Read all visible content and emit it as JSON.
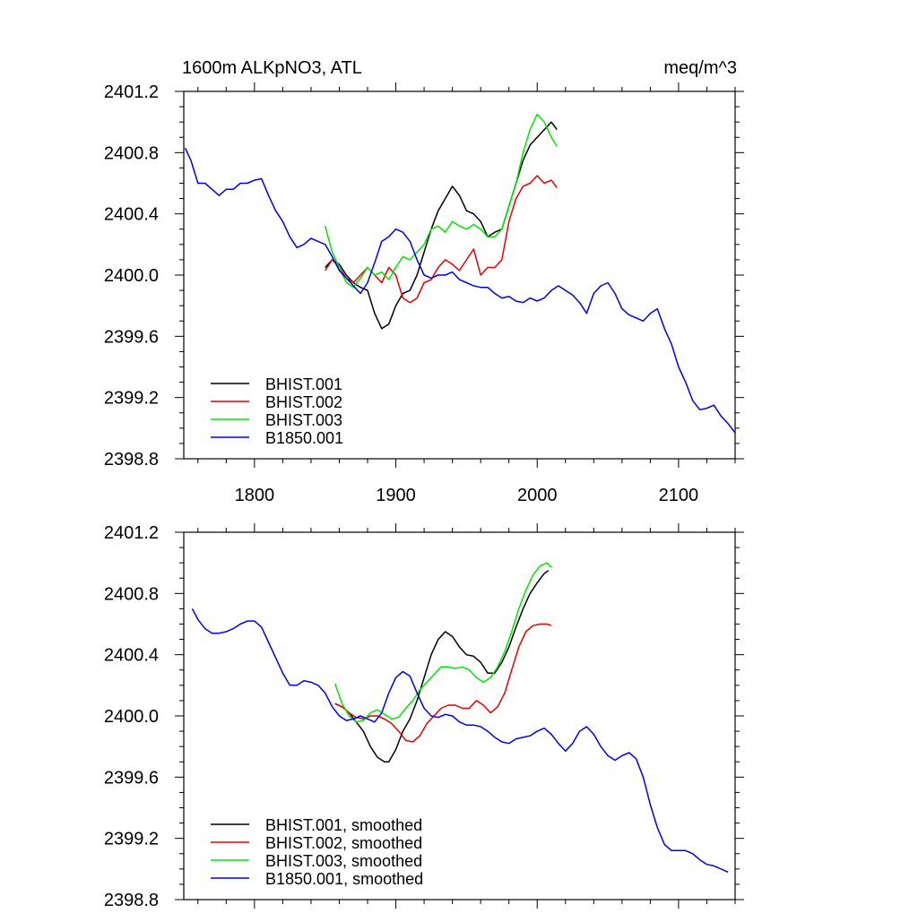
{
  "title_left": "1600m ALKpNO3, ATL",
  "title_right": "meq/m^3",
  "colors": {
    "BHIST.001": "#000000",
    "BHIST.002": "#e60000",
    "BHIST.003": "#00e600",
    "B1850.001": "#0000e6"
  },
  "chart_data": [
    {
      "type": "line",
      "title": "1600m ALKpNO3, ATL",
      "unit": "meq/m^3",
      "xlim": [
        1750,
        2140
      ],
      "ylim": [
        2398.8,
        2401.2
      ],
      "xticks": [
        "1800",
        "1900",
        "2000",
        "2100"
      ],
      "yticks": [
        "2398.8",
        "2399.2",
        "2399.6",
        "2400.0",
        "2400.4",
        "2400.8",
        "2401.2"
      ],
      "grid": false,
      "legend": "bottom-left",
      "series": [
        {
          "name": "BHIST.001",
          "color": "#000000",
          "x": [
            1850,
            1855,
            1860,
            1865,
            1870,
            1875,
            1880,
            1885,
            1890,
            1895,
            1900,
            1905,
            1910,
            1915,
            1920,
            1925,
            1930,
            1935,
            1940,
            1945,
            1950,
            1955,
            1960,
            1965,
            1970,
            1975,
            1980,
            1985,
            1990,
            1995,
            2000,
            2005,
            2010,
            2014
          ],
          "y": [
            2400.05,
            2400.1,
            2400.07,
            2400.0,
            2399.95,
            2399.92,
            2399.9,
            2399.75,
            2399.65,
            2399.68,
            2399.8,
            2399.88,
            2399.9,
            2400.0,
            2400.15,
            2400.3,
            2400.42,
            2400.5,
            2400.58,
            2400.52,
            2400.42,
            2400.4,
            2400.35,
            2400.25,
            2400.28,
            2400.3,
            2400.45,
            2400.6,
            2400.75,
            2400.85,
            2400.9,
            2400.95,
            2401.0,
            2400.95
          ]
        },
        {
          "name": "BHIST.002",
          "color": "#e60000",
          "x": [
            1850,
            1855,
            1860,
            1865,
            1870,
            1875,
            1880,
            1885,
            1890,
            1895,
            1900,
            1905,
            1910,
            1915,
            1920,
            1925,
            1930,
            1935,
            1940,
            1945,
            1950,
            1955,
            1960,
            1965,
            1970,
            1975,
            1980,
            1985,
            1990,
            1995,
            2000,
            2005,
            2010,
            2014
          ],
          "y": [
            2400.03,
            2400.1,
            2400.05,
            2399.98,
            2399.95,
            2400.0,
            2400.05,
            2400.0,
            2399.95,
            2400.05,
            2400.0,
            2399.85,
            2399.82,
            2399.85,
            2399.95,
            2399.97,
            2400.05,
            2400.1,
            2400.07,
            2400.03,
            2400.1,
            2400.17,
            2400.0,
            2400.05,
            2400.05,
            2400.1,
            2400.35,
            2400.5,
            2400.58,
            2400.6,
            2400.65,
            2400.6,
            2400.62,
            2400.57
          ]
        },
        {
          "name": "BHIST.003",
          "color": "#00e600",
          "x": [
            1850,
            1855,
            1860,
            1865,
            1870,
            1875,
            1880,
            1885,
            1890,
            1895,
            1900,
            1905,
            1910,
            1915,
            1920,
            1925,
            1930,
            1935,
            1940,
            1945,
            1950,
            1955,
            1960,
            1965,
            1970,
            1975,
            1980,
            1985,
            1990,
            1995,
            2000,
            2005,
            2010,
            2014
          ],
          "y": [
            2400.32,
            2400.15,
            2400.05,
            2399.95,
            2399.92,
            2399.98,
            2400.05,
            2400.0,
            2400.02,
            2399.97,
            2400.05,
            2400.12,
            2400.1,
            2400.15,
            2400.2,
            2400.3,
            2400.32,
            2400.28,
            2400.35,
            2400.32,
            2400.3,
            2400.33,
            2400.3,
            2400.25,
            2400.25,
            2400.3,
            2400.45,
            2400.6,
            2400.8,
            2400.95,
            2401.05,
            2401.0,
            2400.9,
            2400.84
          ]
        },
        {
          "name": "B1850.001",
          "color": "#0000e6",
          "x": [
            1751,
            1755,
            1760,
            1765,
            1770,
            1775,
            1780,
            1785,
            1790,
            1795,
            1800,
            1805,
            1810,
            1815,
            1820,
            1825,
            1830,
            1835,
            1840,
            1845,
            1850,
            1855,
            1860,
            1865,
            1870,
            1875,
            1880,
            1885,
            1890,
            1895,
            1900,
            1905,
            1910,
            1915,
            1920,
            1925,
            1930,
            1935,
            1940,
            1945,
            1950,
            1955,
            1960,
            1965,
            1970,
            1975,
            1980,
            1985,
            1990,
            1995,
            2000,
            2005,
            2010,
            2015,
            2020,
            2025,
            2030,
            2035,
            2040,
            2045,
            2050,
            2055,
            2060,
            2065,
            2070,
            2075,
            2080,
            2085,
            2090,
            2095,
            2100,
            2105,
            2110,
            2115,
            2120,
            2125,
            2130,
            2135,
            2140
          ],
          "y": [
            2400.83,
            2400.75,
            2400.6,
            2400.6,
            2400.56,
            2400.52,
            2400.56,
            2400.56,
            2400.6,
            2400.6,
            2400.62,
            2400.63,
            2400.52,
            2400.42,
            2400.35,
            2400.25,
            2400.18,
            2400.2,
            2400.24,
            2400.22,
            2400.2,
            2400.12,
            2400.03,
            2399.98,
            2399.93,
            2399.88,
            2399.95,
            2400.08,
            2400.22,
            2400.25,
            2400.3,
            2400.28,
            2400.22,
            2400.1,
            2400.0,
            2399.98,
            2400.0,
            2400.0,
            2400.02,
            2399.97,
            2399.95,
            2399.93,
            2399.92,
            2399.92,
            2399.88,
            2399.85,
            2399.86,
            2399.83,
            2399.82,
            2399.85,
            2399.83,
            2399.85,
            2399.9,
            2399.93,
            2399.9,
            2399.87,
            2399.82,
            2399.75,
            2399.88,
            2399.93,
            2399.95,
            2399.88,
            2399.78,
            2399.74,
            2399.72,
            2399.7,
            2399.75,
            2399.78,
            2399.65,
            2399.55,
            2399.4,
            2399.3,
            2399.18,
            2399.12,
            2399.13,
            2399.15,
            2399.08,
            2399.03,
            2398.97
          ]
        }
      ]
    },
    {
      "type": "line",
      "xlim": [
        1750,
        2140
      ],
      "ylim": [
        2398.8,
        2401.2
      ],
      "xticks": [
        "",
        "",
        "",
        ""
      ],
      "yticks": [
        "2398.8",
        "2399.2",
        "2399.6",
        "2400.0",
        "2400.4",
        "2400.8",
        "2401.2"
      ],
      "grid": false,
      "legend": "bottom-left",
      "series": [
        {
          "name": "BHIST.001, smoothed",
          "color": "#000000",
          "x": [
            1857,
            1862,
            1867,
            1872,
            1877,
            1882,
            1887,
            1892,
            1895,
            1900,
            1905,
            1910,
            1915,
            1920,
            1925,
            1930,
            1935,
            1940,
            1945,
            1950,
            1955,
            1960,
            1965,
            1970,
            1975,
            1980,
            1985,
            1990,
            1995,
            2000,
            2005,
            2008
          ],
          "y": [
            2400.08,
            2400.06,
            2400.02,
            2399.96,
            2399.9,
            2399.8,
            2399.73,
            2399.7,
            2399.7,
            2399.78,
            2399.9,
            2399.98,
            2400.1,
            2400.25,
            2400.4,
            2400.5,
            2400.55,
            2400.52,
            2400.45,
            2400.4,
            2400.39,
            2400.35,
            2400.28,
            2400.28,
            2400.35,
            2400.45,
            2400.58,
            2400.7,
            2400.8,
            2400.87,
            2400.93,
            2400.95
          ]
        },
        {
          "name": "BHIST.002, smoothed",
          "color": "#e60000",
          "x": [
            1857,
            1862,
            1867,
            1872,
            1877,
            1882,
            1887,
            1892,
            1897,
            1902,
            1907,
            1912,
            1917,
            1922,
            1927,
            1932,
            1937,
            1942,
            1947,
            1952,
            1957,
            1962,
            1967,
            1972,
            1977,
            1982,
            1987,
            1992,
            1997,
            2002,
            2007,
            2010
          ],
          "y": [
            2400.08,
            2400.06,
            2400.02,
            2399.99,
            2399.98,
            2400.0,
            2400.0,
            2399.98,
            2399.95,
            2399.9,
            2399.84,
            2399.83,
            2399.87,
            2399.95,
            2400.0,
            2400.05,
            2400.07,
            2400.07,
            2400.05,
            2400.05,
            2400.1,
            2400.07,
            2400.02,
            2400.06,
            2400.15,
            2400.3,
            2400.45,
            2400.55,
            2400.59,
            2400.6,
            2400.6,
            2400.59
          ]
        },
        {
          "name": "BHIST.003, smoothed",
          "color": "#00e600",
          "x": [
            1857,
            1862,
            1867,
            1872,
            1877,
            1882,
            1887,
            1892,
            1897,
            1902,
            1907,
            1912,
            1917,
            1922,
            1927,
            1932,
            1937,
            1942,
            1947,
            1952,
            1957,
            1962,
            1967,
            1972,
            1977,
            1982,
            1987,
            1992,
            1997,
            2002,
            2007,
            2010
          ],
          "y": [
            2400.21,
            2400.08,
            2400.0,
            2399.96,
            2399.97,
            2400.02,
            2400.04,
            2400.01,
            2399.98,
            2399.99,
            2400.05,
            2400.1,
            2400.17,
            2400.22,
            2400.27,
            2400.32,
            2400.32,
            2400.31,
            2400.32,
            2400.3,
            2400.25,
            2400.22,
            2400.25,
            2400.32,
            2400.42,
            2400.55,
            2400.7,
            2400.82,
            2400.92,
            2400.98,
            2401.0,
            2400.97
          ]
        },
        {
          "name": "B1850.001, smoothed",
          "color": "#0000e6",
          "x": [
            1756,
            1760,
            1765,
            1770,
            1775,
            1780,
            1785,
            1790,
            1795,
            1800,
            1805,
            1810,
            1815,
            1820,
            1825,
            1830,
            1835,
            1840,
            1845,
            1850,
            1855,
            1860,
            1865,
            1870,
            1875,
            1880,
            1885,
            1890,
            1895,
            1900,
            1905,
            1910,
            1915,
            1920,
            1925,
            1930,
            1935,
            1940,
            1945,
            1950,
            1955,
            1960,
            1965,
            1970,
            1975,
            1980,
            1985,
            1990,
            1995,
            2000,
            2005,
            2010,
            2015,
            2020,
            2025,
            2030,
            2035,
            2040,
            2045,
            2050,
            2055,
            2060,
            2065,
            2070,
            2075,
            2080,
            2085,
            2090,
            2095,
            2100,
            2105,
            2110,
            2115,
            2120,
            2125,
            2130,
            2135
          ],
          "y": [
            2400.7,
            2400.63,
            2400.57,
            2400.54,
            2400.54,
            2400.55,
            2400.57,
            2400.6,
            2400.62,
            2400.62,
            2400.58,
            2400.48,
            2400.38,
            2400.28,
            2400.2,
            2400.2,
            2400.23,
            2400.22,
            2400.2,
            2400.15,
            2400.06,
            2400.0,
            2399.97,
            2399.98,
            2400.0,
            2399.98,
            2399.96,
            2400.02,
            2400.15,
            2400.25,
            2400.29,
            2400.26,
            2400.15,
            2400.05,
            2400.0,
            2399.99,
            2400.01,
            2400.0,
            2399.96,
            2399.94,
            2399.94,
            2399.93,
            2399.9,
            2399.86,
            2399.83,
            2399.82,
            2399.85,
            2399.86,
            2399.87,
            2399.9,
            2399.92,
            2399.88,
            2399.82,
            2399.77,
            2399.82,
            2399.9,
            2399.93,
            2399.88,
            2399.8,
            2399.74,
            2399.71,
            2399.74,
            2399.76,
            2399.72,
            2399.6,
            2399.42,
            2399.27,
            2399.16,
            2399.12,
            2399.12,
            2399.12,
            2399.1,
            2399.06,
            2399.03,
            2399.02,
            2399.0,
            2398.98
          ]
        }
      ]
    }
  ]
}
